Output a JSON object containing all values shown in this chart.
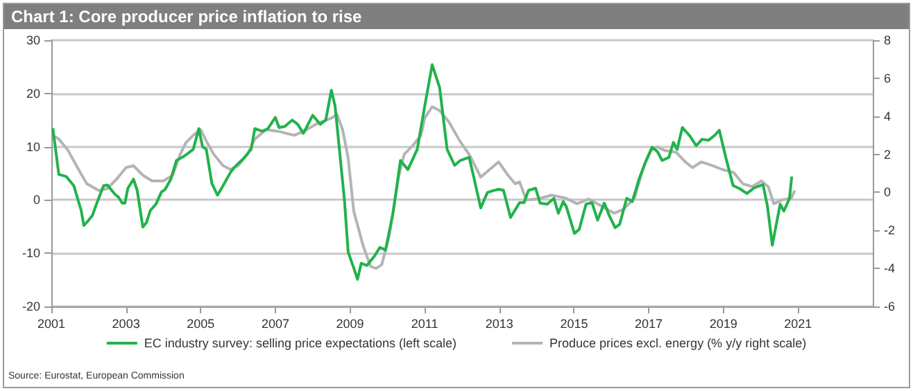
{
  "chart_data": {
    "type": "line",
    "title": "Chart 1: Core producer price inflation to rise",
    "annotations": [
      "Source: Eurostat, European Commission"
    ],
    "xlim": [
      2001,
      2023
    ],
    "xticks": [
      2001,
      2003,
      2005,
      2007,
      2009,
      2011,
      2013,
      2015,
      2017,
      2019,
      2021
    ],
    "ylim": [
      -20,
      30
    ],
    "yticks": [
      -20,
      -10,
      0,
      10,
      20,
      30
    ],
    "y2lim": [
      -6,
      8
    ],
    "y2ticks": [
      -6,
      -4,
      -2,
      0,
      2,
      4,
      6,
      8
    ],
    "grid": "y",
    "legend": "bottom",
    "series": [
      {
        "name": "EC industry survey: selling price expectations (left scale)",
        "color": "#22b24c",
        "x": [
          2001.04,
          2001.2,
          2001.4,
          2001.6,
          2001.8,
          2001.87,
          2002.0,
          2002.1,
          2002.25,
          2002.4,
          2002.5,
          2002.7,
          2002.8,
          2002.9,
          2002.97,
          2003.05,
          2003.2,
          2003.3,
          2003.45,
          2003.55,
          2003.65,
          2003.8,
          2003.95,
          2004.05,
          2004.2,
          2004.35,
          2004.55,
          2004.65,
          2004.8,
          2004.95,
          2005.05,
          2005.15,
          2005.3,
          2005.45,
          2005.6,
          2005.8,
          2005.9,
          2006.0,
          2006.15,
          2006.35,
          2006.45,
          2006.65,
          2006.8,
          2007.0,
          2007.1,
          2007.25,
          2007.45,
          2007.6,
          2007.75,
          2008.0,
          2008.2,
          2008.35,
          2008.5,
          2008.6,
          2008.85,
          2008.95,
          2009.1,
          2009.2,
          2009.3,
          2009.45,
          2009.65,
          2009.8,
          2009.95,
          2010.15,
          2010.35,
          2010.55,
          2010.8,
          2011.0,
          2011.2,
          2011.4,
          2011.6,
          2011.8,
          2011.95,
          2012.19,
          2012.31,
          2012.5,
          2012.68,
          2012.86,
          2012.98,
          2013.11,
          2013.3,
          2013.54,
          2013.66,
          2013.78,
          2013.97,
          2014.09,
          2014.28,
          2014.46,
          2014.58,
          2014.71,
          2014.79,
          2015.01,
          2015.14,
          2015.32,
          2015.48,
          2015.63,
          2015.81,
          2015.94,
          2016.1,
          2016.22,
          2016.41,
          2016.56,
          2016.74,
          2016.93,
          2017.09,
          2017.23,
          2017.36,
          2017.54,
          2017.66,
          2017.76,
          2017.9,
          2018.09,
          2018.27,
          2018.43,
          2018.6,
          2018.76,
          2018.89,
          2019.07,
          2019.26,
          2019.44,
          2019.63,
          2019.81,
          2020.06,
          2020.18,
          2020.31,
          2020.52,
          2020.62,
          2020.77,
          2020.83
        ],
        "values": [
          13.5,
          4.8,
          4.4,
          2.7,
          -2,
          -4.8,
          -3.8,
          -2.9,
          0,
          2.7,
          2.8,
          1.1,
          0.5,
          -0.6,
          -0.6,
          2.2,
          3.9,
          1.8,
          -5.1,
          -4.2,
          -2,
          -0.8,
          1.5,
          2,
          3.9,
          7.4,
          8.2,
          8.7,
          9.5,
          13.4,
          10,
          9.5,
          3.1,
          0.9,
          2.7,
          5.2,
          6.1,
          6.8,
          7.8,
          9.5,
          13.4,
          12.9,
          13.4,
          15.5,
          13.6,
          13.8,
          15,
          14.2,
          12.5,
          15.9,
          14.2,
          15,
          20.6,
          17.6,
          0,
          -9.8,
          -12.8,
          -14.9,
          -11.9,
          -12.3,
          -10.6,
          -8.9,
          -9.4,
          -2.5,
          7.4,
          5.7,
          9.5,
          17.6,
          25.4,
          21.1,
          9.5,
          6.5,
          7.4,
          8,
          4.4,
          -1.5,
          1.4,
          1.8,
          2,
          1.8,
          -3.3,
          -0.5,
          -0.5,
          1.8,
          2.2,
          -0.6,
          -0.8,
          0.3,
          -2.5,
          -0.3,
          -1.2,
          -6.3,
          -5.5,
          -0.8,
          -0.5,
          -3.8,
          -0.6,
          -2.9,
          -5.2,
          -4.6,
          0.3,
          -0.3,
          3.9,
          7.4,
          9.9,
          9.1,
          7.4,
          8,
          10.8,
          9.5,
          13.6,
          12.1,
          10.2,
          11.4,
          11.2,
          12.1,
          13.1,
          7.8,
          2.7,
          2.1,
          1.2,
          2.2,
          2.9,
          -1.2,
          -8.5,
          -0.8,
          -2.1,
          0.3,
          4.4
        ]
      },
      {
        "name": "Produce prices excl. energy (% y/y right scale)",
        "color": "#b4b4b4",
        "axis": "y2",
        "x": [
          2001.04,
          2001.2,
          2001.45,
          2001.7,
          2001.95,
          2002.27,
          2002.5,
          2002.75,
          2003.0,
          2003.2,
          2003.45,
          2003.7,
          2004.0,
          2004.25,
          2004.45,
          2004.6,
          2004.8,
          2005.0,
          2005.15,
          2005.35,
          2005.6,
          2005.8,
          2006.0,
          2006.25,
          2006.45,
          2006.75,
          2007.1,
          2007.5,
          2007.75,
          2008.1,
          2008.5,
          2008.65,
          2008.8,
          2008.95,
          2009.1,
          2009.35,
          2009.55,
          2009.7,
          2009.85,
          2010.05,
          2010.3,
          2010.45,
          2010.7,
          2010.9,
          2011.0,
          2011.2,
          2011.4,
          2011.65,
          2011.94,
          2012.19,
          2012.5,
          2012.8,
          2012.98,
          2013.23,
          2013.42,
          2013.54,
          2013.72,
          2014.03,
          2014.4,
          2014.77,
          2015.08,
          2015.39,
          2015.76,
          2016.07,
          2016.32,
          2016.62,
          2016.87,
          2017.06,
          2017.22,
          2017.43,
          2017.74,
          2017.98,
          2018.17,
          2018.41,
          2018.72,
          2018.97,
          2019.27,
          2019.52,
          2019.77,
          2020.02,
          2020.2,
          2020.35,
          2020.57,
          2020.82,
          2020.91
        ],
        "values": [
          3,
          2.8,
          2.2,
          1.3,
          0.45,
          0.1,
          0.2,
          0.7,
          1.3,
          1.4,
          0.9,
          0.6,
          0.6,
          0.9,
          2,
          2.6,
          3,
          3.3,
          2.7,
          2,
          1.4,
          1.2,
          1.4,
          2,
          2.8,
          3.3,
          3.2,
          3,
          3.2,
          3.6,
          3.9,
          4.1,
          3.3,
          1.8,
          -1,
          -2.8,
          -3.9,
          -4,
          -3.8,
          -2.3,
          0.8,
          2,
          2.5,
          3,
          3.9,
          4.5,
          4.3,
          3.7,
          2.7,
          2,
          0.8,
          1.3,
          1.6,
          0.9,
          0.45,
          0.55,
          -0.4,
          -0.35,
          -0.15,
          -0.3,
          -0.6,
          -0.35,
          -0.75,
          -1.1,
          -0.9,
          -0.3,
          1.4,
          2.2,
          2.4,
          2.2,
          2.1,
          1.6,
          1.3,
          1.6,
          1.4,
          1.2,
          1.05,
          0.45,
          0.3,
          0.6,
          0.3,
          -0.6,
          -0.4,
          -0.3,
          0.1
        ]
      }
    ]
  }
}
